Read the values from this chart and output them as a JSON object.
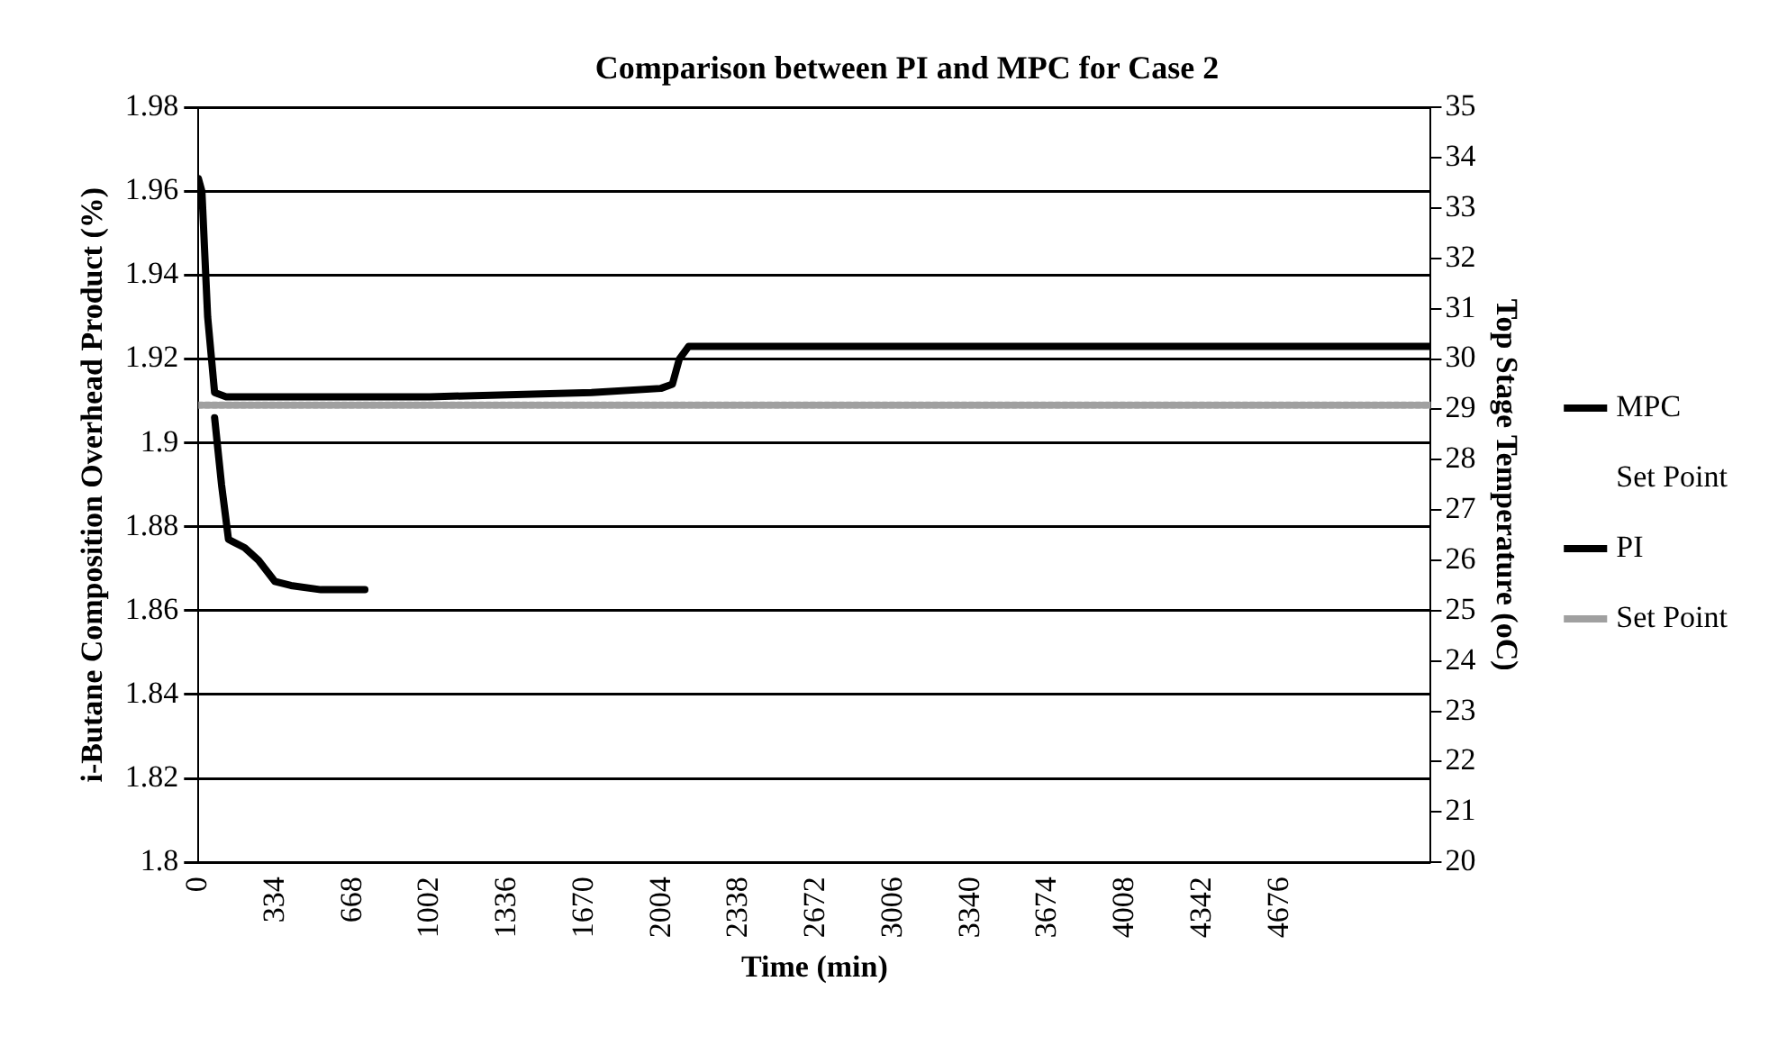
{
  "chart_data": {
    "type": "line",
    "title": "Comparison between PI and MPC for Case 2",
    "xlabel": "Time (min)",
    "ylabel": "i-Butane Composition Overhead Product (%)",
    "y2label": "Top Stage Temperature (oC)",
    "xlim": [
      0,
      5330
    ],
    "xticks": [
      0,
      334,
      668,
      1002,
      1336,
      1670,
      2004,
      2338,
      2672,
      3006,
      3340,
      3674,
      4008,
      4342,
      4676
    ],
    "ylim": [
      1.8,
      1.98
    ],
    "yticks": [
      1.8,
      1.82,
      1.84,
      1.86,
      1.88,
      1.9,
      1.92,
      1.94,
      1.96,
      1.98
    ],
    "y2lim": [
      20,
      35
    ],
    "y2ticks": [
      20,
      21,
      22,
      23,
      24,
      25,
      26,
      27,
      28,
      29,
      30,
      31,
      32,
      33,
      34,
      35
    ],
    "grid": "y",
    "legend": "right",
    "marker": "none",
    "series": [
      {
        "name": "MPC",
        "color": "#000000",
        "x": [
          0,
          15,
          40,
          70,
          120,
          1000,
          1700,
          2000,
          2050,
          2080,
          2120,
          2200,
          5330
        ],
        "values": [
          1.963,
          1.96,
          1.93,
          1.912,
          1.911,
          1.911,
          1.912,
          1.913,
          1.914,
          1.92,
          1.923,
          1.923,
          1.923
        ]
      },
      {
        "name": "Set Point",
        "values": [
          null
        ]
      },
      {
        "name": "PI",
        "color": "#000000",
        "x": [
          70,
          100,
          130,
          200,
          260,
          330,
          400,
          530,
          720
        ],
        "values": [
          1.906,
          1.89,
          1.877,
          1.875,
          1.872,
          1.867,
          1.866,
          1.865,
          1.865
        ]
      },
      {
        "name": "Set Point",
        "color": "#a0a0a0",
        "line_style": "dotted",
        "x": [
          0,
          5330
        ],
        "values": [
          1.909,
          1.909
        ]
      }
    ]
  }
}
